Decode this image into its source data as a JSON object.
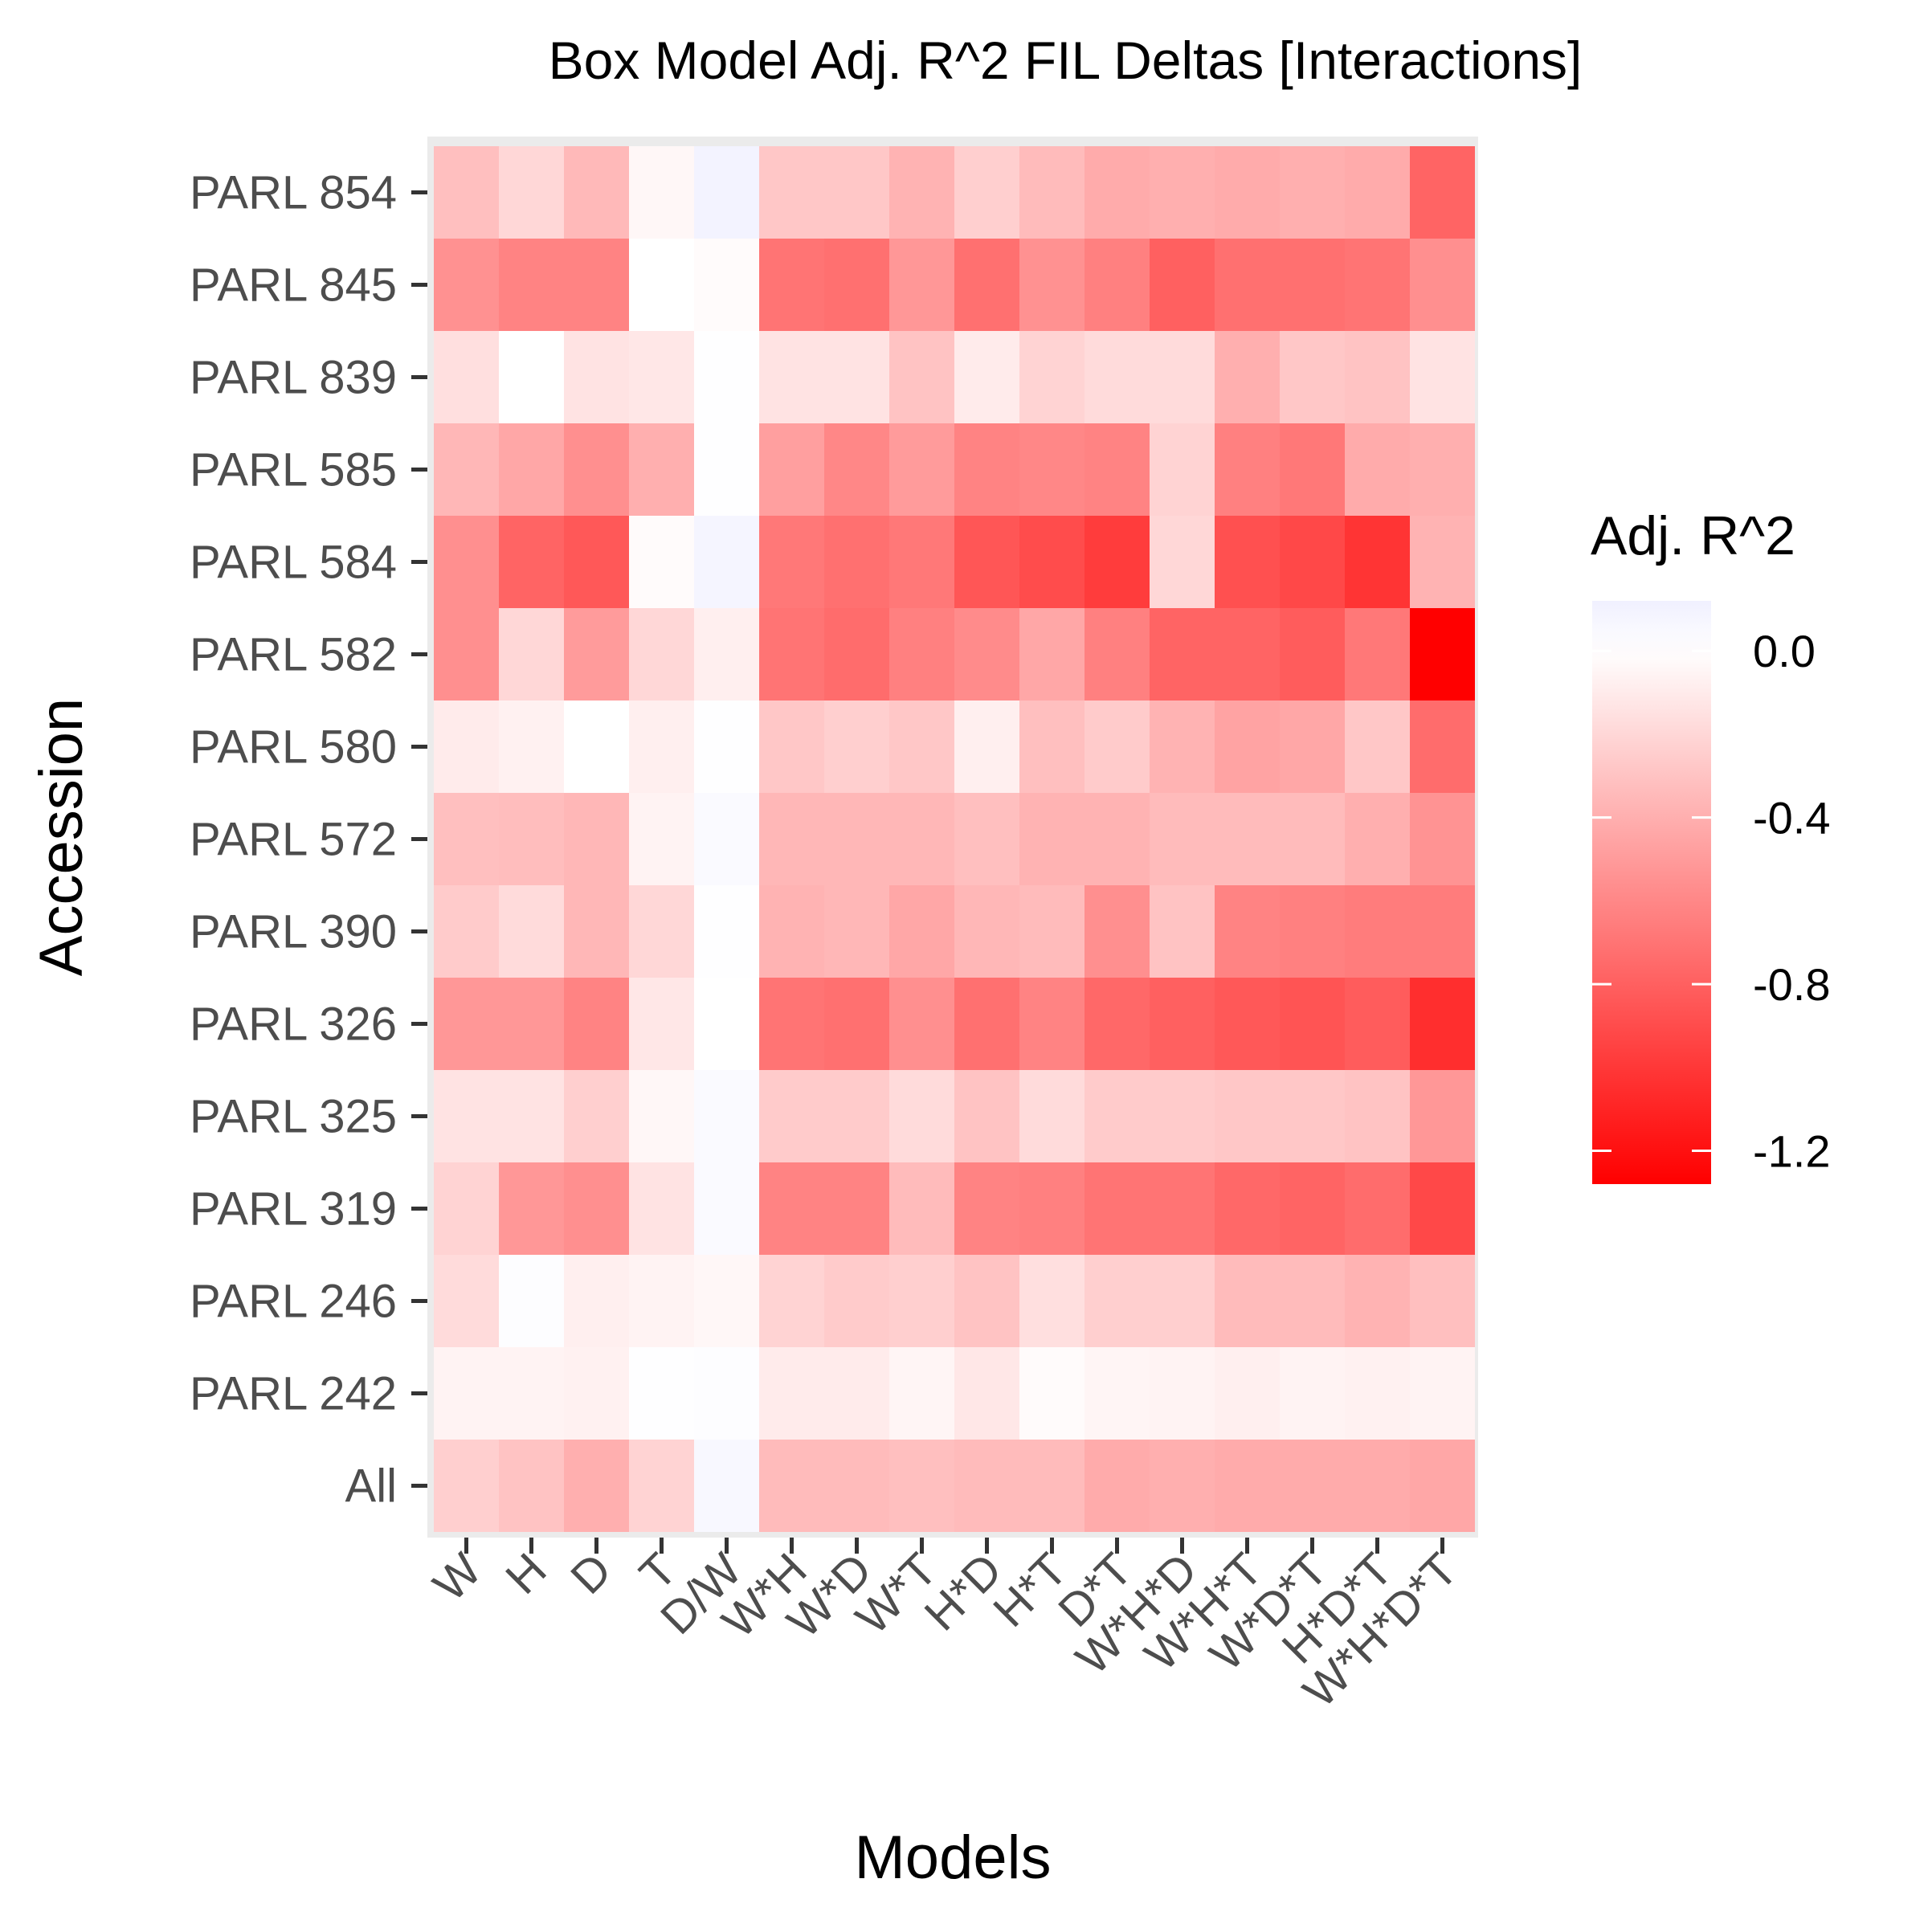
{
  "chart_data": {
    "type": "heatmap",
    "title": "Box Model Adj. R^2 FIL Deltas [Interactions]",
    "xlabel": "Models",
    "ylabel": "Accession",
    "x_categories": [
      "W",
      "H",
      "D",
      "T",
      "D/W",
      "W*H",
      "W*D",
      "W*T",
      "H*D",
      "H*T",
      "D*T",
      "W*H*D",
      "W*H*T",
      "W*D*T",
      "H*D*T",
      "W*H*D*T"
    ],
    "y_categories": [
      "PARL 854",
      "PARL 845",
      "PARL 839",
      "PARL 585",
      "PARL 584",
      "PARL 582",
      "PARL 580",
      "PARL 572",
      "PARL 390",
      "PARL 326",
      "PARL 325",
      "PARL 319",
      "PARL 246",
      "PARL 242",
      "All"
    ],
    "values": [
      [
        -0.32,
        -0.2,
        -0.35,
        -0.04,
        0.1,
        -0.28,
        -0.28,
        -0.38,
        -0.24,
        -0.34,
        -0.42,
        -0.4,
        -0.42,
        -0.4,
        -0.42,
        -0.78
      ],
      [
        -0.55,
        -0.62,
        -0.62,
        0.0,
        -0.02,
        -0.7,
        -0.72,
        -0.52,
        -0.72,
        -0.55,
        -0.64,
        -0.8,
        -0.72,
        -0.72,
        -0.7,
        -0.56
      ],
      [
        -0.16,
        0.0,
        -0.14,
        -0.12,
        0.01,
        -0.14,
        -0.14,
        -0.3,
        -0.1,
        -0.22,
        -0.18,
        -0.18,
        -0.4,
        -0.28,
        -0.3,
        -0.14
      ],
      [
        -0.36,
        -0.44,
        -0.56,
        -0.4,
        0.01,
        -0.48,
        -0.6,
        -0.5,
        -0.62,
        -0.6,
        -0.62,
        -0.22,
        -0.64,
        -0.68,
        -0.42,
        -0.4
      ],
      [
        -0.56,
        -0.78,
        -0.84,
        -0.02,
        0.08,
        -0.68,
        -0.72,
        -0.68,
        -0.85,
        -0.9,
        -0.98,
        -0.2,
        -0.88,
        -0.92,
        -1.02,
        -0.38
      ],
      [
        -0.56,
        -0.2,
        -0.5,
        -0.2,
        -0.08,
        -0.7,
        -0.74,
        -0.64,
        -0.58,
        -0.44,
        -0.64,
        -0.78,
        -0.78,
        -0.82,
        -0.68,
        -1.32
      ],
      [
        -0.1,
        -0.07,
        0.0,
        -0.08,
        0.01,
        -0.28,
        -0.24,
        -0.28,
        -0.08,
        -0.32,
        -0.26,
        -0.38,
        -0.46,
        -0.44,
        -0.28,
        -0.74
      ],
      [
        -0.32,
        -0.33,
        -0.36,
        -0.06,
        0.04,
        -0.36,
        -0.36,
        -0.36,
        -0.32,
        -0.38,
        -0.38,
        -0.34,
        -0.34,
        -0.34,
        -0.4,
        -0.54
      ],
      [
        -0.26,
        -0.18,
        -0.36,
        -0.2,
        0.01,
        -0.38,
        -0.36,
        -0.44,
        -0.36,
        -0.34,
        -0.56,
        -0.3,
        -0.62,
        -0.64,
        -0.66,
        -0.66
      ],
      [
        -0.52,
        -0.52,
        -0.62,
        -0.12,
        0.0,
        -0.7,
        -0.72,
        -0.56,
        -0.72,
        -0.62,
        -0.76,
        -0.8,
        -0.84,
        -0.86,
        -0.82,
        -1.05
      ],
      [
        -0.14,
        -0.14,
        -0.24,
        -0.04,
        0.04,
        -0.26,
        -0.26,
        -0.18,
        -0.3,
        -0.18,
        -0.26,
        -0.26,
        -0.28,
        -0.28,
        -0.3,
        -0.52
      ],
      [
        -0.22,
        -0.52,
        -0.56,
        -0.14,
        0.04,
        -0.62,
        -0.62,
        -0.34,
        -0.62,
        -0.64,
        -0.7,
        -0.7,
        -0.76,
        -0.78,
        -0.74,
        -0.92
      ],
      [
        -0.18,
        0.02,
        -0.08,
        -0.06,
        -0.04,
        -0.22,
        -0.26,
        -0.24,
        -0.3,
        -0.16,
        -0.24,
        -0.24,
        -0.34,
        -0.34,
        -0.38,
        -0.32
      ],
      [
        -0.06,
        -0.06,
        -0.07,
        0.01,
        0.02,
        -0.1,
        -0.1,
        -0.05,
        -0.12,
        -0.02,
        -0.05,
        -0.06,
        -0.08,
        -0.06,
        -0.07,
        -0.06
      ],
      [
        -0.24,
        -0.3,
        -0.4,
        -0.22,
        0.06,
        -0.34,
        -0.34,
        -0.32,
        -0.34,
        -0.34,
        -0.42,
        -0.4,
        -0.42,
        -0.42,
        -0.42,
        -0.44
      ]
    ],
    "colorbar": {
      "title": "Adj. R^2",
      "ticks": [
        "0.0",
        "-0.4",
        "-0.8",
        "-1.2"
      ],
      "tick_values": [
        0.0,
        -0.4,
        -0.8,
        -1.2
      ],
      "min": -1.28,
      "max": 0.12,
      "colors": {
        "low": "#ff0000",
        "mid": "#ffffff",
        "high": "#f0f0ff"
      }
    },
    "grid": true,
    "legend_position": "right"
  }
}
